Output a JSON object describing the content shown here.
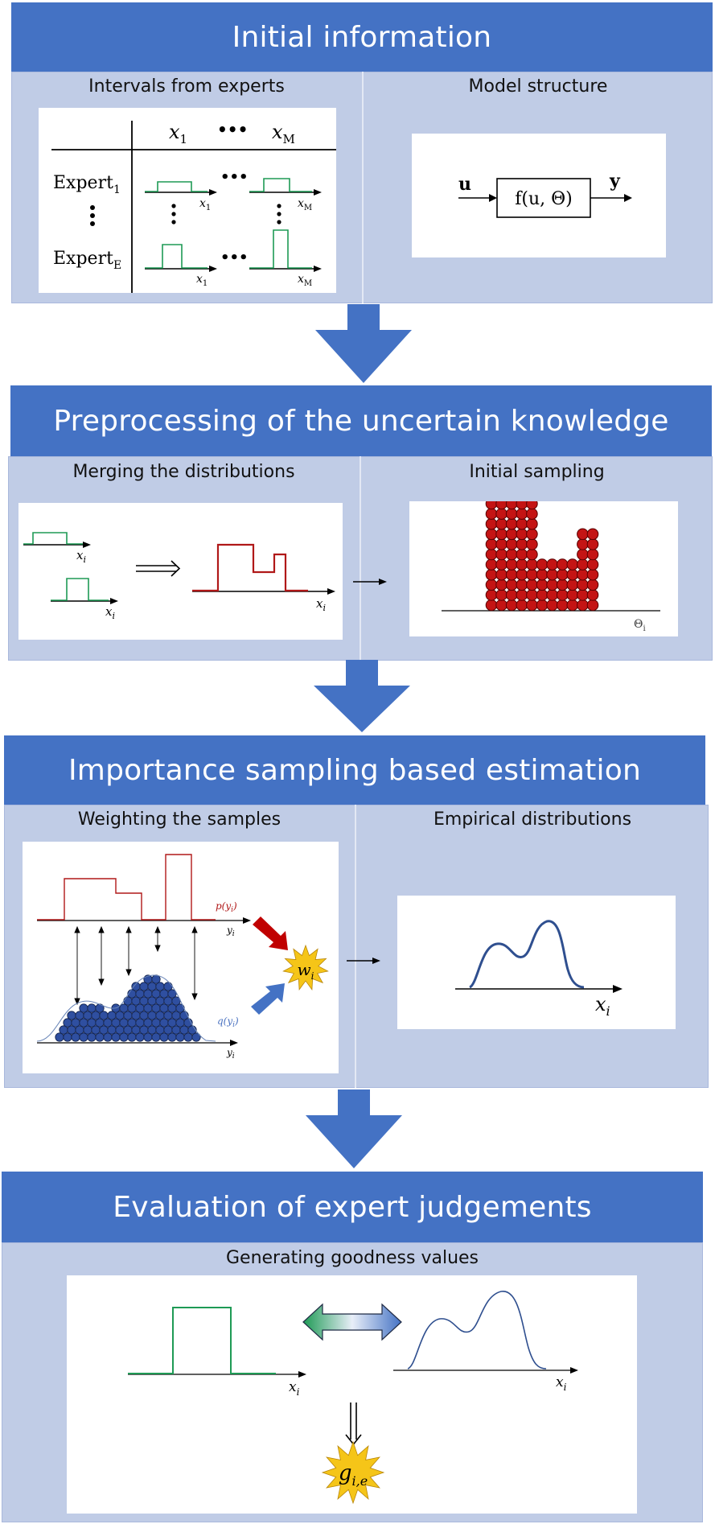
{
  "sections": [
    {
      "title": "Initial information",
      "panels": [
        "Intervals from experts",
        "Model structure"
      ]
    },
    {
      "title": "Preprocessing of the uncertain knowledge",
      "panels": [
        "Merging the distributions",
        "Initial sampling"
      ]
    },
    {
      "title": "Importance sampling based estimation",
      "panels": [
        "Weighting the samples",
        "Empirical distributions"
      ]
    },
    {
      "title": "Evaluation of expert judgements",
      "panels": [
        "Generating goodness values"
      ]
    }
  ],
  "expert_table": {
    "col_first": "x",
    "col_first_sub": "1",
    "col_last": "x",
    "col_last_sub": "M",
    "row_first": "Expert",
    "row_first_sub": "1",
    "row_last": "Expert",
    "row_last_sub": "E",
    "dots": "•••",
    "axis_first": "x",
    "axis_first_sub": "1",
    "axis_last": "x",
    "axis_last_sub": "M"
  },
  "model": {
    "input": "u",
    "output": "y",
    "function": "f(u, Θ)"
  },
  "merge": {
    "axis": "x",
    "axis_sub": "i"
  },
  "sampling": {
    "axis": "Θ",
    "axis_sub": "i"
  },
  "weighting": {
    "p_label": "p(y",
    "p_sub": "i",
    "p_close": ")",
    "q_label": "q(y",
    "q_sub": "i",
    "q_close": ")",
    "axis": "y",
    "axis_sub": "i",
    "weight": "w",
    "weight_sub": "i"
  },
  "empirical": {
    "axis": "x",
    "axis_sub": "i"
  },
  "goodness": {
    "axis": "x",
    "axis_sub": "i",
    "result": "g",
    "result_sub": "i,e"
  },
  "colors": {
    "header": "#4472c4",
    "panel": "#c0cce6",
    "green": "#1e9a55",
    "red": "#b01818",
    "blue": "#2f4f8f",
    "star": "#f5c518"
  }
}
